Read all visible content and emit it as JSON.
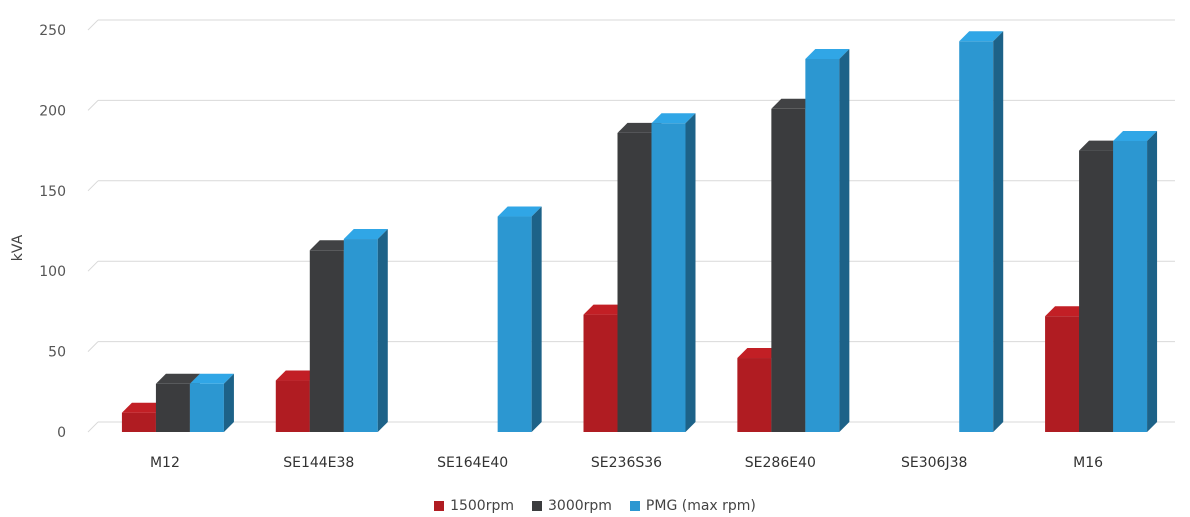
{
  "chart_data": {
    "type": "bar",
    "ylabel": "kVA",
    "ylim": [
      0,
      250
    ],
    "yticks": [
      0,
      50,
      100,
      150,
      200,
      250
    ],
    "grid": true,
    "legend_position": "bottom",
    "categories": [
      "M12",
      "SE144E38",
      "SE164E40",
      "SE236S36",
      "SE286E40",
      "SE306J38",
      "M16"
    ],
    "series": [
      {
        "name": "1500rpm",
        "color": "#b01c22",
        "values": [
          12,
          32,
          null,
          73,
          46,
          null,
          72
        ]
      },
      {
        "name": "3000rpm",
        "color": "#3b3c3e",
        "values": [
          30,
          113,
          null,
          186,
          201,
          null,
          175
        ]
      },
      {
        "name": "PMG (max rpm)",
        "color": "#2c97d1",
        "values": [
          30,
          120,
          134,
          192,
          232,
          243,
          181
        ]
      }
    ]
  }
}
